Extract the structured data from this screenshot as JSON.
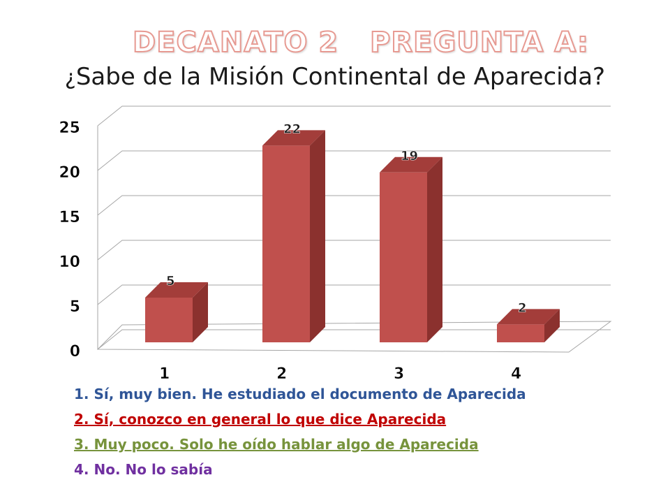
{
  "header": {
    "title_left": "DECANATO 2",
    "title_right": "PREGUNTA A:",
    "question": "Sabe de la Misión Continental de Aparecida",
    "question_open": "¿",
    "question_close": "?"
  },
  "chart_data": {
    "type": "bar",
    "style": "3d-column",
    "categories": [
      "1",
      "2",
      "3",
      "4"
    ],
    "values": [
      5,
      22,
      19,
      2
    ],
    "data_labels": [
      "5",
      "22",
      "19",
      "2"
    ],
    "ylim": [
      0,
      25
    ],
    "yticks": [
      0,
      5,
      10,
      15,
      20,
      25
    ],
    "ytick_labels": [
      "0",
      "5",
      "10",
      "15",
      "20",
      "25"
    ],
    "grid": true,
    "bar_color": "#c0504d",
    "bar_side_color": "#8b312e",
    "bar_top_color": "#a33d3a"
  },
  "legend": [
    {
      "text": "1. Sí, muy bien. He estudiado el documento de Aparecida",
      "color": "#2f5597",
      "underline": false
    },
    {
      "text": "2. Sí, conozco en general lo que dice Aparecida",
      "color": "#c00000",
      "underline": true
    },
    {
      "text": "3. Muy poco. Solo he oído hablar algo de Aparecida",
      "color": "#77933c",
      "underline": true
    },
    {
      "text": "4. No. No lo sabía",
      "color": "#7030a0",
      "underline": false
    }
  ]
}
